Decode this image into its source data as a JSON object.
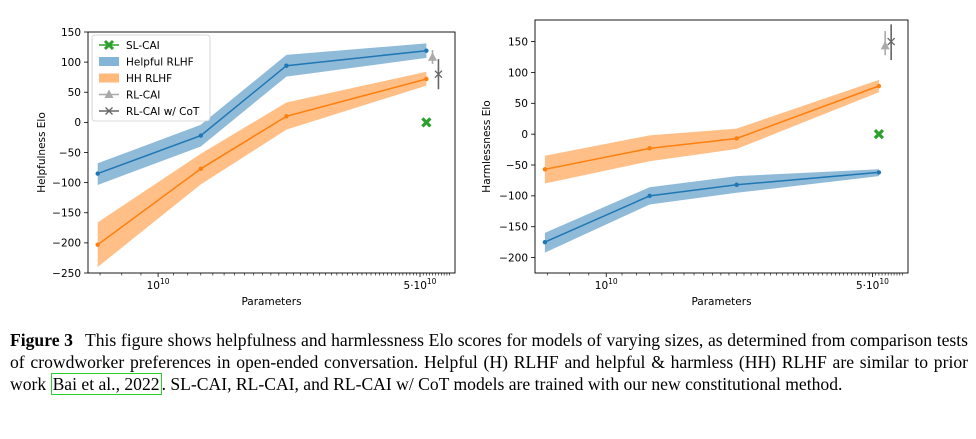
{
  "caption": {
    "label": "Figure 3",
    "text1": "This figure shows helpfulness and harmlessness Elo scores for models of varying sizes, as determined from comparison tests of crowdworker preferences in open-ended conversation. Helpful (H) RLHF and helpful & harmless (HH) RLHF are similar to prior work ",
    "cite": "Bai et al., 2022",
    "text2": ". SL-CAI, RL-CAI, and RL-CAI w/ CoT models are trained with our new constitutional method."
  },
  "legend": [
    {
      "label": "SL-CAI",
      "color": "#2ca02c",
      "kind": "x-marker"
    },
    {
      "label": "Helpful RLHF",
      "color": "#1f77b4",
      "kind": "band"
    },
    {
      "label": "HH RLHF",
      "color": "#ff7f0e",
      "kind": "band"
    },
    {
      "label": "RL-CAI",
      "color": "#aaaaaa",
      "kind": "triangle"
    },
    {
      "label": "RL-CAI w/ CoT",
      "color": "#666666",
      "kind": "star"
    }
  ],
  "chart_data": [
    {
      "type": "line",
      "ylabel": "Helpfulness Elo",
      "xlabel": "Parameters",
      "x_scale": "log",
      "xtick_labels": [
        "10^10",
        "5·10^10"
      ],
      "xtick_values": [
        10000000000.0,
        50000000000.0
      ],
      "xlim": [
        6500000000.0,
        62000000000.0
      ],
      "ylim": [
        -250,
        150
      ],
      "yticks": [
        -250,
        -200,
        -150,
        -100,
        -50,
        0,
        50,
        100,
        150
      ],
      "grid": false,
      "legend_position": "top-left",
      "series": [
        {
          "name": "Helpful RLHF",
          "color": "#1f77b4",
          "x": [
            6900000000.0,
            13000000000.0,
            22000000000.0,
            52000000000.0
          ],
          "y": [
            -85,
            -22,
            94,
            119
          ],
          "band_low": [
            -104,
            -40,
            76,
            107
          ],
          "band_high": [
            -68,
            -4,
            112,
            131
          ]
        },
        {
          "name": "HH RLHF",
          "color": "#ff7f0e",
          "x": [
            6900000000.0,
            13000000000.0,
            22000000000.0,
            52000000000.0
          ],
          "y": [
            -203,
            -77,
            10,
            72
          ],
          "band_low": [
            -240,
            -103,
            -12,
            61
          ],
          "band_high": [
            -166,
            -52,
            33,
            84
          ]
        },
        {
          "name": "SL-CAI",
          "color": "#2ca02c",
          "x": [
            52000000000.0
          ],
          "y": [
            0
          ]
        },
        {
          "name": "RL-CAI",
          "color": "#aaaaaa",
          "x": [
            54000000000.0
          ],
          "y": [
            108
          ],
          "err_low": 97,
          "err_high": 120
        },
        {
          "name": "RL-CAI w/ CoT",
          "color": "#666666",
          "x": [
            56000000000.0
          ],
          "y": [
            80
          ],
          "err_low": 55,
          "err_high": 105
        }
      ]
    },
    {
      "type": "line",
      "ylabel": "Harmlessness Elo",
      "xlabel": "Parameters",
      "x_scale": "log",
      "xtick_labels": [
        "10^10",
        "5·10^10"
      ],
      "xtick_values": [
        10000000000.0,
        50000000000.0
      ],
      "xlim": [
        6500000000.0,
        62000000000.0
      ],
      "ylim": [
        -225,
        185
      ],
      "yticks": [
        -200,
        -150,
        -100,
        -50,
        0,
        50,
        100,
        150
      ],
      "grid": false,
      "series": [
        {
          "name": "Helpful RLHF",
          "color": "#1f77b4",
          "x": [
            6900000000.0,
            13000000000.0,
            22000000000.0,
            52000000000.0
          ],
          "y": [
            -175,
            -100,
            -82,
            -62
          ],
          "band_low": [
            -192,
            -114,
            -95,
            -68
          ],
          "band_high": [
            -160,
            -86,
            -68,
            -57
          ]
        },
        {
          "name": "HH RLHF",
          "color": "#ff7f0e",
          "x": [
            6900000000.0,
            13000000000.0,
            22000000000.0,
            52000000000.0
          ],
          "y": [
            -57,
            -23,
            -7,
            78
          ],
          "band_low": [
            -80,
            -44,
            -24,
            68
          ],
          "band_high": [
            -35,
            -2,
            9,
            88
          ]
        },
        {
          "name": "SL-CAI",
          "color": "#2ca02c",
          "x": [
            52000000000.0
          ],
          "y": [
            0
          ]
        },
        {
          "name": "RL-CAI",
          "color": "#aaaaaa",
          "x": [
            54000000000.0
          ],
          "y": [
            143
          ],
          "err_low": 128,
          "err_high": 167
        },
        {
          "name": "RL-CAI w/ CoT",
          "color": "#666666",
          "x": [
            56000000000.0
          ],
          "y": [
            150
          ],
          "err_low": 120,
          "err_high": 178
        }
      ]
    }
  ]
}
